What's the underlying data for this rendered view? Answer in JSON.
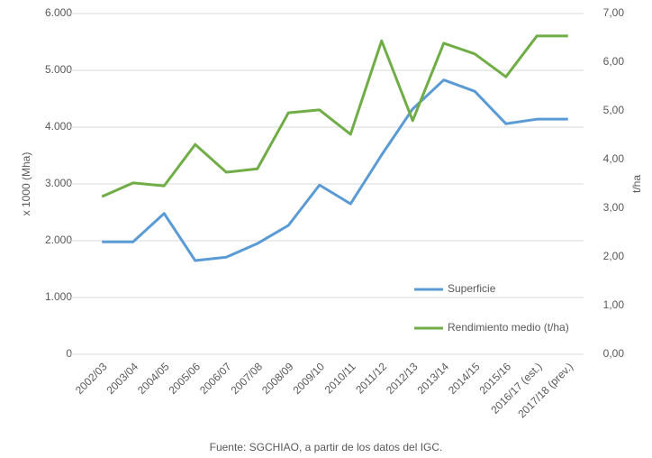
{
  "chart_data": {
    "type": "line",
    "y_label": "x 1000 (Mha)",
    "y2_label": "t/ha",
    "caption": "Fuente: SGCHIAO, a partir de los datos del IGC.",
    "categories": [
      "2002/03",
      "2003/04",
      "2004/05",
      "2005/06",
      "2006/07",
      "2007/08",
      "2008/09",
      "2009/10",
      "2010/11",
      "2011/12",
      "2012/13",
      "2013/14",
      "2014/15",
      "2015/16",
      "2016/17 (est.)",
      "2017/18 (prev.)"
    ],
    "series": [
      {
        "name": "Superficie",
        "color": "#5b9bd5",
        "axis": "y",
        "values": [
          1980,
          1980,
          2480,
          1650,
          1710,
          1950,
          2270,
          2980,
          2650,
          3510,
          4320,
          4830,
          4630,
          4060,
          4140,
          4140
        ]
      },
      {
        "name": "Rendimiento medio (t/ha)",
        "color": "#70ad47",
        "axis": "y2",
        "values": [
          3.24,
          3.52,
          3.46,
          4.31,
          3.74,
          3.81,
          4.96,
          5.02,
          4.52,
          6.44,
          4.8,
          6.39,
          6.17,
          5.7,
          6.54,
          6.54
        ]
      }
    ],
    "ylim": [
      0,
      6000
    ],
    "yticks": [
      0,
      {
        "value": 1000,
        "label": "1.000"
      },
      {
        "value": 2000,
        "label": "2.000"
      },
      {
        "value": 3000,
        "label": "3.000"
      },
      {
        "value": 4000,
        "label": "4.000"
      },
      {
        "value": 5000,
        "label": "5.000"
      },
      {
        "value": 6000,
        "label": "6.000"
      }
    ],
    "y2lim": [
      0,
      7
    ],
    "y2ticks": [
      {
        "value": 0,
        "label": "0,00"
      },
      {
        "value": 1,
        "label": "1,00"
      },
      {
        "value": 2,
        "label": "2,00"
      },
      {
        "value": 3,
        "label": "3,00"
      },
      {
        "value": 4,
        "label": "4,00"
      },
      {
        "value": 5,
        "label": "5,00"
      },
      {
        "value": 6,
        "label": "6,00"
      },
      {
        "value": 7,
        "label": "7,00"
      }
    ],
    "grid": true
  }
}
